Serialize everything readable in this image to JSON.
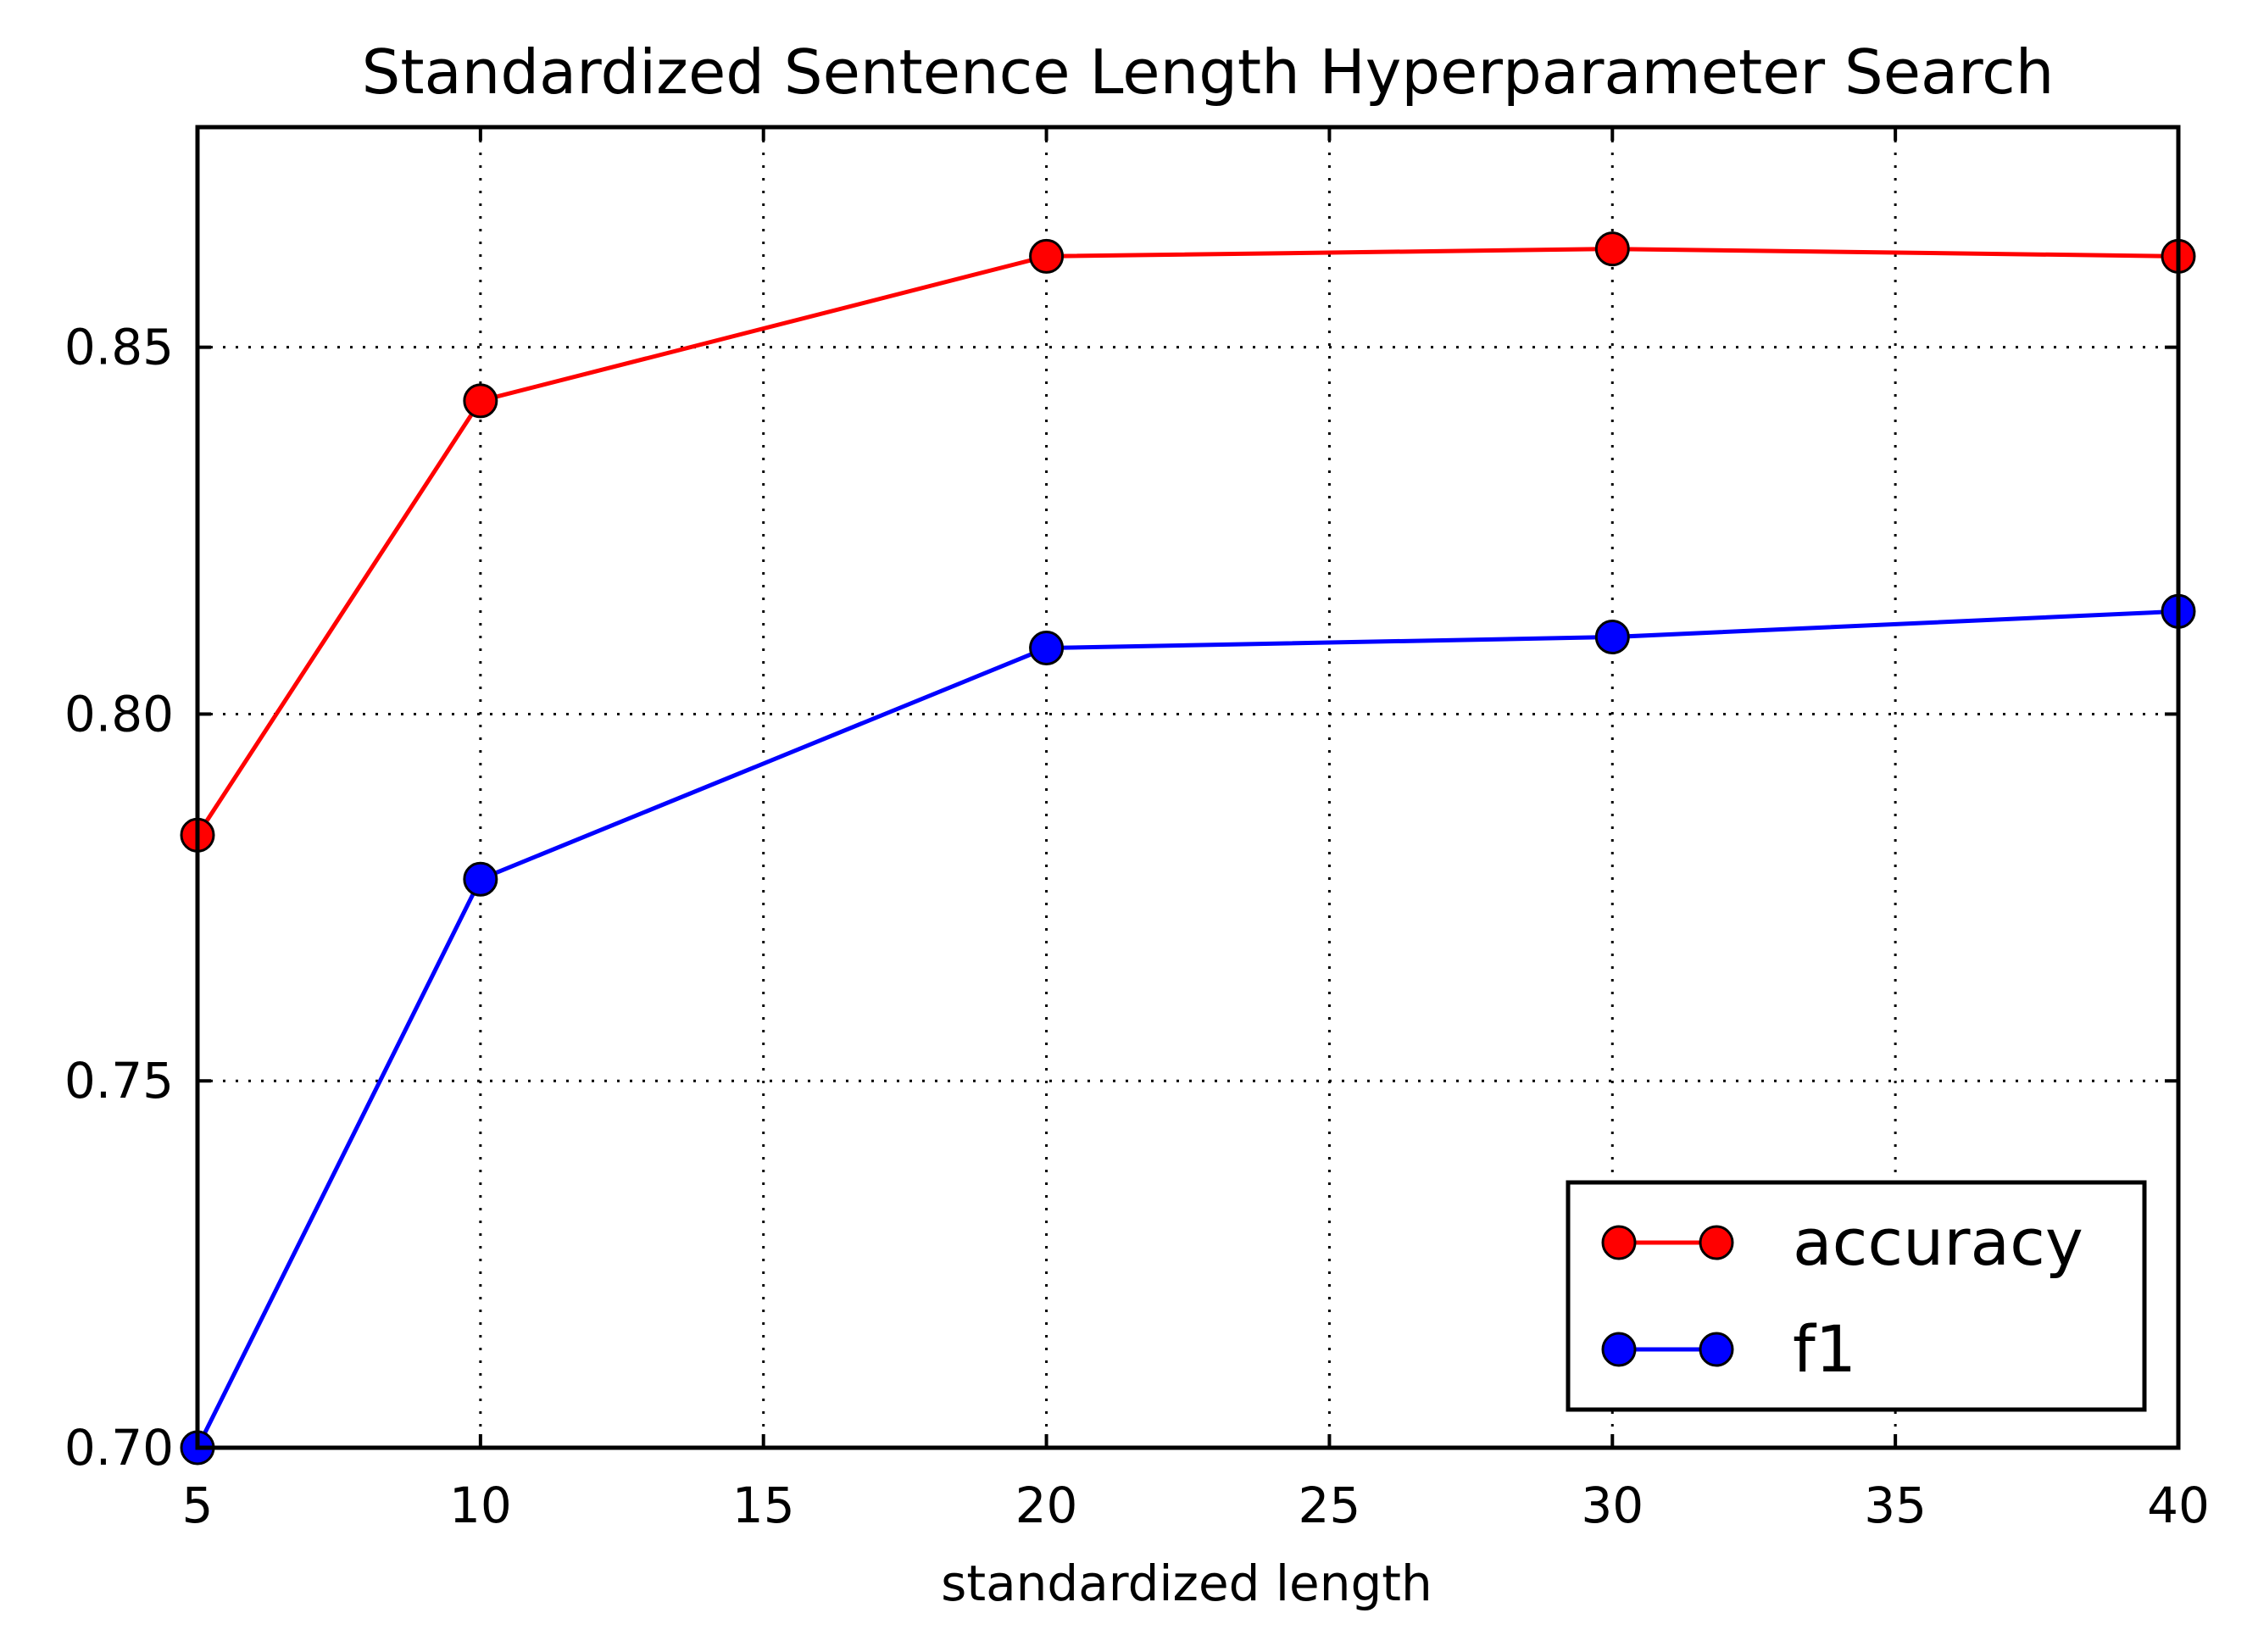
{
  "chart_data": {
    "type": "line",
    "title": "Standardized Sentence Length Hyperparameter Search",
    "xlabel": "standardized length",
    "ylabel": "",
    "xlim": [
      5,
      40
    ],
    "ylim": [
      0.7,
      0.88
    ],
    "xticks": [
      5,
      10,
      15,
      20,
      25,
      30,
      35,
      40
    ],
    "xtick_labels": [
      "5",
      "10",
      "15",
      "20",
      "25",
      "30",
      "35",
      "40"
    ],
    "yticks": [
      0.7,
      0.75,
      0.8,
      0.85
    ],
    "ytick_labels": [
      "0.70",
      "0.75",
      "0.80",
      "0.85"
    ],
    "grid": true,
    "legend_position": "lower-right",
    "x": [
      5,
      10,
      20,
      30,
      40
    ],
    "series": [
      {
        "name": "accuracy",
        "color": "#ff0000",
        "values": [
          0.7835,
          0.8427,
          0.8624,
          0.8634,
          0.8624
        ]
      },
      {
        "name": "f1",
        "color": "#0000ff",
        "values": [
          0.7,
          0.7775,
          0.809,
          0.8105,
          0.814
        ]
      }
    ]
  }
}
